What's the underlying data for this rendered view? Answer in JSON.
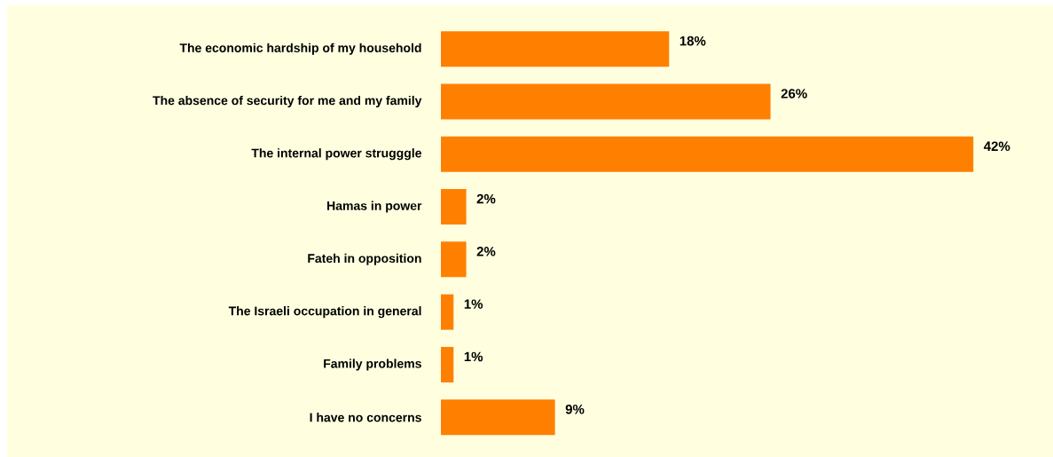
{
  "chart_data": {
    "type": "bar",
    "orientation": "horizontal",
    "categories": [
      "The economic hardship of my household",
      "The absence of security for me and my family",
      "The internal power strugggle",
      "Hamas in power",
      "Fateh in opposition",
      "The Israeli occupation in general",
      "Family problems",
      "I have no concerns"
    ],
    "values": [
      18,
      26,
      42,
      2,
      2,
      1,
      1,
      9
    ],
    "value_labels": [
      "18%",
      "26%",
      "42%",
      "2%",
      "2%",
      "1%",
      "1%",
      "9%"
    ],
    "color": "#ff8000"
  }
}
